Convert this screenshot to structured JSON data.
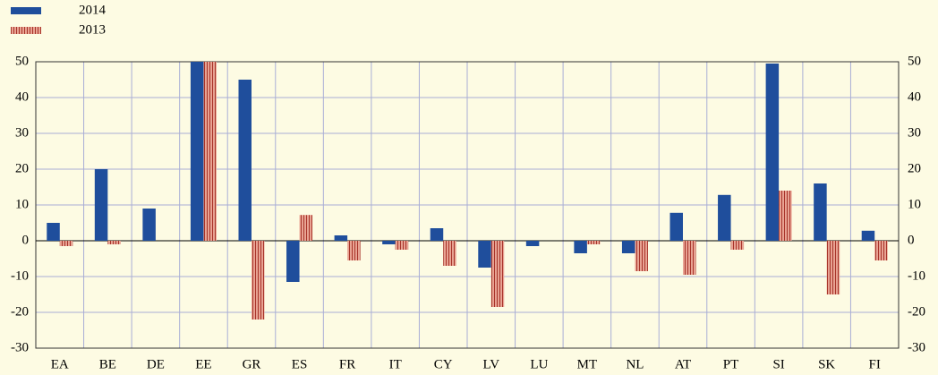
{
  "chart_data": {
    "type": "bar",
    "categories": [
      "EA",
      "BE",
      "DE",
      "EE",
      "GR",
      "ES",
      "FR",
      "IT",
      "CY",
      "LV",
      "LU",
      "MT",
      "NL",
      "AT",
      "PT",
      "SI",
      "SK",
      "FI"
    ],
    "series": [
      {
        "name": "2014",
        "color": "#1f4e9c",
        "values": [
          5,
          20,
          9,
          50,
          45,
          -11.5,
          1.5,
          -1,
          3.5,
          -7.5,
          -1.5,
          -3.5,
          -3.5,
          7.8,
          12.8,
          49.5,
          16,
          2.8
        ]
      },
      {
        "name": "2013",
        "color": "#e8a393",
        "hatch": true,
        "values": [
          -1.5,
          -1,
          0,
          50,
          -22,
          7.2,
          -5.5,
          -2.5,
          -7,
          -18.5,
          0,
          -1,
          -8.5,
          -9.5,
          -2.5,
          14,
          -15,
          -5.5
        ]
      }
    ],
    "ylim": [
      -30,
      50
    ],
    "yticks": [
      -30,
      -20,
      -10,
      0,
      10,
      20,
      30,
      40,
      50
    ],
    "grid": true,
    "legend": "top-left"
  }
}
